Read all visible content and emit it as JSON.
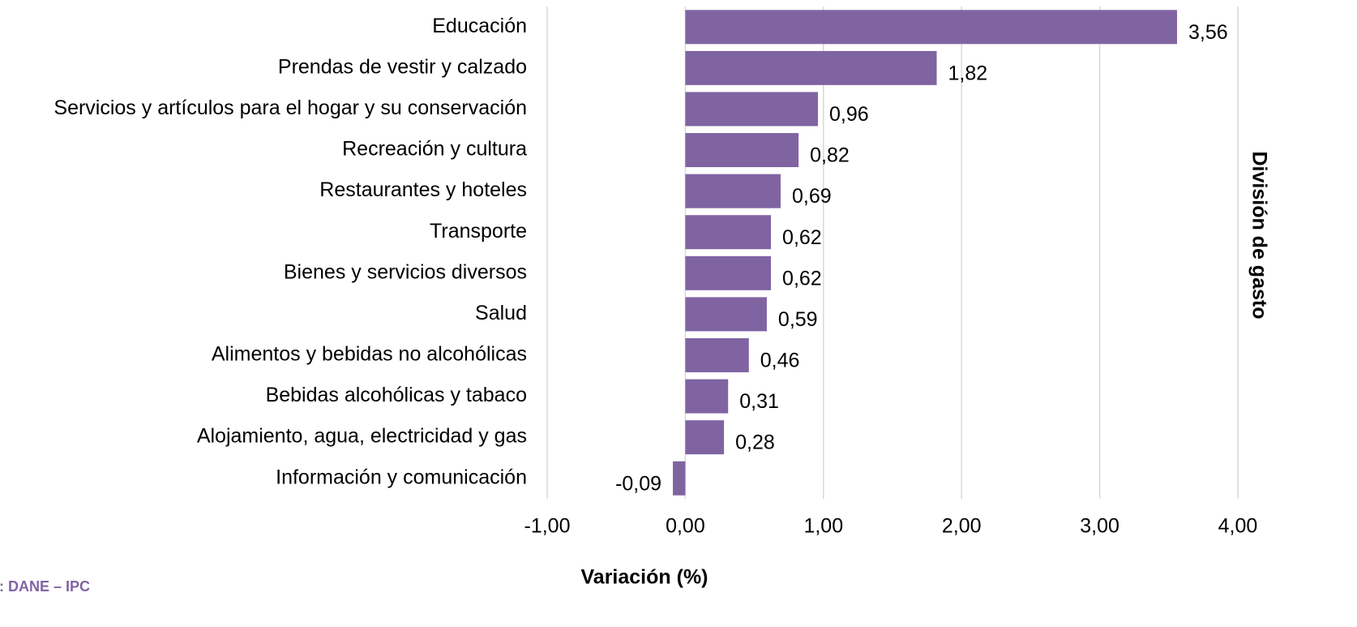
{
  "chart_data": {
    "type": "bar",
    "orientation": "horizontal",
    "x_label": "Variación (%)",
    "y_label": "División de gasto",
    "source": "Fuente: DANE – IPC",
    "categories": [
      "Educación",
      "Prendas de vestir y calzado",
      "Servicios y artículos para el hogar y su conservación",
      "Recreación y cultura",
      "Restaurantes y hoteles",
      "Transporte",
      "Bienes y servicios diversos",
      "Salud",
      "Alimentos y bebidas no alcohólicas",
      "Bebidas alcohólicas y tabaco",
      "Alojamiento, agua, electricidad y gas",
      "Información y comunicación"
    ],
    "values": [
      3.56,
      1.82,
      0.96,
      0.82,
      0.69,
      0.62,
      0.62,
      0.59,
      0.46,
      0.31,
      0.28,
      -0.09
    ],
    "value_labels": [
      "3,56",
      "1,82",
      "0,96",
      "0,82",
      "0,69",
      "0,62",
      "0,62",
      "0,59",
      "0,46",
      "0,31",
      "0,28",
      "-0,09"
    ],
    "color": "#8064a2",
    "xlim": [
      -1,
      4
    ],
    "xticks": [
      {
        "value": -1,
        "label": "-1,00"
      },
      {
        "value": 0,
        "label": "0,00"
      },
      {
        "value": 1,
        "label": "1,00"
      },
      {
        "value": 2,
        "label": "2,00"
      },
      {
        "value": 3,
        "label": "3,00"
      },
      {
        "value": 4,
        "label": "4,00"
      }
    ],
    "grid": true
  }
}
